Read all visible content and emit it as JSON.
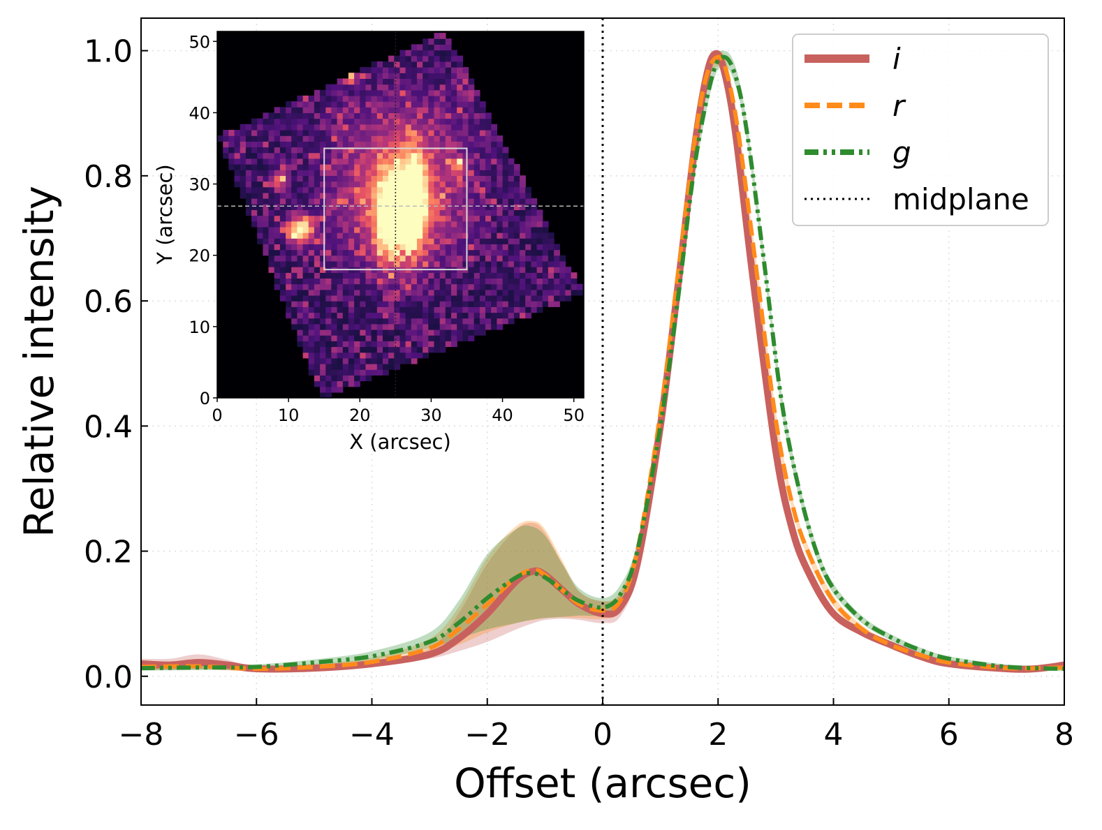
{
  "chart_data": [
    {
      "type": "line",
      "xlabel": "Offset (arcsec)",
      "ylabel": "Relative intensity",
      "xlim": [
        -8,
        8
      ],
      "ylim": [
        -0.046,
        1.052
      ],
      "xticks": [
        "−8",
        "−6",
        "−4",
        "−2",
        "0",
        "2",
        "4",
        "6",
        "8"
      ],
      "xtick_values": [
        -8,
        -6,
        -4,
        -2,
        0,
        2,
        4,
        6,
        8
      ],
      "yticks": [
        "0.0",
        "0.2",
        "0.4",
        "0.6",
        "0.8",
        "1.0"
      ],
      "ytick_values": [
        0,
        0.2,
        0.4,
        0.6,
        0.8,
        1.0
      ],
      "grid": true,
      "legend_placement": "top-right",
      "midplane": {
        "name": "midplane",
        "x": 0,
        "color": "#000000",
        "style": "dotted"
      },
      "series": [
        {
          "name": "i",
          "color": "#c8615e",
          "style": "solid",
          "x": [
            -8,
            -7.5,
            -7,
            -6.5,
            -6,
            -5,
            -4,
            -3,
            -2.5,
            -2,
            -1.5,
            -1.2,
            -1,
            -0.7,
            -0.4,
            0,
            0.3,
            0.6,
            1,
            1.3,
            1.6,
            1.8,
            1.95,
            2.1,
            2.3,
            2.6,
            3,
            3.3,
            3.6,
            4,
            4.5,
            5,
            5.5,
            6,
            7,
            7.5,
            8
          ],
          "y": [
            0.02,
            0.018,
            0.022,
            0.018,
            0.012,
            0.013,
            0.02,
            0.035,
            0.06,
            0.1,
            0.152,
            0.168,
            0.162,
            0.138,
            0.115,
            0.1,
            0.11,
            0.18,
            0.4,
            0.62,
            0.85,
            0.96,
            0.995,
            0.97,
            0.87,
            0.64,
            0.36,
            0.23,
            0.16,
            0.1,
            0.07,
            0.05,
            0.032,
            0.02,
            0.012,
            0.012,
            0.018
          ],
          "band_lower": [
            0.012,
            0.01,
            0.012,
            0.01,
            0.008,
            0.009,
            0.015,
            0.028,
            0.04,
            0.055,
            0.075,
            0.085,
            0.09,
            0.092,
            0.09,
            0.085,
            0.095,
            0.165,
            0.38,
            0.6,
            0.83,
            0.945,
            0.98,
            0.955,
            0.855,
            0.625,
            0.345,
            0.22,
            0.15,
            0.092,
            0.064,
            0.045,
            0.028,
            0.016,
            0.009,
            0.009,
            0.013
          ],
          "band_upper": [
            0.028,
            0.028,
            0.035,
            0.026,
            0.016,
            0.017,
            0.025,
            0.045,
            0.1,
            0.18,
            0.235,
            0.245,
            0.23,
            0.18,
            0.135,
            0.12,
            0.13,
            0.2,
            0.42,
            0.64,
            0.87,
            0.975,
            1.0,
            0.985,
            0.885,
            0.655,
            0.375,
            0.24,
            0.17,
            0.108,
            0.076,
            0.055,
            0.036,
            0.024,
            0.016,
            0.015,
            0.022
          ]
        },
        {
          "name": "r",
          "color": "#ff8c1a",
          "style": "dashed",
          "x": [
            -8,
            -7,
            -6,
            -5,
            -4,
            -3,
            -2.5,
            -2,
            -1.5,
            -1.2,
            -1,
            -0.7,
            -0.4,
            0,
            0.3,
            0.6,
            1,
            1.3,
            1.6,
            1.8,
            2.0,
            2.15,
            2.35,
            2.65,
            3,
            3.3,
            3.6,
            4,
            4.5,
            5,
            5.5,
            6,
            7,
            8
          ],
          "y": [
            0.015,
            0.016,
            0.012,
            0.015,
            0.023,
            0.045,
            0.075,
            0.115,
            0.158,
            0.17,
            0.162,
            0.138,
            0.115,
            0.105,
            0.12,
            0.2,
            0.42,
            0.64,
            0.86,
            0.96,
            0.99,
            0.965,
            0.87,
            0.66,
            0.41,
            0.27,
            0.19,
            0.12,
            0.075,
            0.05,
            0.034,
            0.022,
            0.013,
            0.014
          ],
          "band_lower": [
            0.01,
            0.011,
            0.008,
            0.01,
            0.017,
            0.035,
            0.05,
            0.07,
            0.085,
            0.09,
            0.093,
            0.094,
            0.093,
            0.092,
            0.105,
            0.185,
            0.4,
            0.62,
            0.84,
            0.945,
            0.975,
            0.95,
            0.855,
            0.645,
            0.395,
            0.26,
            0.18,
            0.112,
            0.069,
            0.045,
            0.03,
            0.018,
            0.009,
            0.01
          ],
          "band_upper": [
            0.02,
            0.021,
            0.016,
            0.02,
            0.03,
            0.06,
            0.11,
            0.19,
            0.24,
            0.248,
            0.235,
            0.185,
            0.135,
            0.12,
            0.135,
            0.215,
            0.44,
            0.66,
            0.88,
            0.975,
            1.0,
            0.98,
            0.885,
            0.675,
            0.425,
            0.28,
            0.2,
            0.128,
            0.081,
            0.055,
            0.038,
            0.026,
            0.017,
            0.018
          ]
        },
        {
          "name": "g",
          "color": "#2e8b2e",
          "style": "dashdotdot",
          "x": [
            -8,
            -7,
            -6,
            -5,
            -4,
            -3,
            -2.5,
            -2,
            -1.5,
            -1.25,
            -1,
            -0.7,
            -0.4,
            0,
            0.3,
            0.6,
            1,
            1.3,
            1.6,
            1.9,
            2.1,
            2.3,
            2.5,
            2.8,
            3.1,
            3.4,
            3.7,
            4,
            4.5,
            5,
            5.5,
            6,
            7,
            8
          ],
          "y": [
            0.013,
            0.014,
            0.015,
            0.022,
            0.032,
            0.055,
            0.085,
            0.125,
            0.158,
            0.165,
            0.158,
            0.138,
            0.12,
            0.11,
            0.13,
            0.2,
            0.4,
            0.6,
            0.82,
            0.96,
            0.99,
            0.96,
            0.87,
            0.66,
            0.44,
            0.3,
            0.2,
            0.14,
            0.09,
            0.062,
            0.042,
            0.028,
            0.015,
            0.012
          ],
          "band_lower": [
            0.009,
            0.01,
            0.011,
            0.017,
            0.026,
            0.045,
            0.06,
            0.075,
            0.085,
            0.09,
            0.093,
            0.095,
            0.097,
            0.098,
            0.115,
            0.185,
            0.38,
            0.58,
            0.8,
            0.945,
            0.975,
            0.945,
            0.855,
            0.645,
            0.425,
            0.288,
            0.19,
            0.132,
            0.084,
            0.057,
            0.038,
            0.024,
            0.011,
            0.008
          ],
          "band_upper": [
            0.017,
            0.018,
            0.019,
            0.027,
            0.04,
            0.07,
            0.12,
            0.195,
            0.235,
            0.24,
            0.225,
            0.18,
            0.14,
            0.125,
            0.145,
            0.215,
            0.42,
            0.62,
            0.84,
            0.975,
            1.0,
            0.975,
            0.885,
            0.675,
            0.455,
            0.312,
            0.21,
            0.148,
            0.096,
            0.067,
            0.046,
            0.032,
            0.019,
            0.016
          ]
        }
      ]
    },
    {
      "type": "heatmap",
      "xlabel": "X (arcsec)",
      "ylabel": "Y (arcsec)",
      "xlim": [
        0,
        51.4
      ],
      "ylim": [
        0,
        51.4
      ],
      "xticks": [
        "0",
        "10",
        "20",
        "30",
        "40",
        "50"
      ],
      "xtick_values": [
        0,
        10,
        20,
        30,
        40,
        50
      ],
      "yticks": [
        "0",
        "10",
        "20",
        "30",
        "40",
        "50"
      ],
      "ytick_values": [
        0,
        10,
        20,
        30,
        40,
        50
      ],
      "colormap": "magma",
      "footprint": [
        [
          0,
          36.7
        ],
        [
          32,
          51.4
        ],
        [
          51.4,
          14.6
        ],
        [
          14.6,
          0
        ]
      ],
      "box": {
        "x": [
          15,
          35
        ],
        "y": [
          18,
          35
        ],
        "color": "#d9d9d9"
      },
      "horizontal_cut_y": 26.9,
      "vertical_cut_x": 25,
      "sources": [
        {
          "x": 27,
          "y": 27,
          "sx": 1.4,
          "sy": 4.5,
          "amp": 1.0
        },
        {
          "x": 23.5,
          "y": 25,
          "sx": 1.3,
          "sy": 4.5,
          "amp": 0.7
        },
        {
          "x": 25,
          "y": 27,
          "sx": 6,
          "sy": 6,
          "amp": 0.45
        },
        {
          "x": 11.3,
          "y": 23.2,
          "sx": 1.3,
          "sy": 1.3,
          "amp": 0.85
        },
        {
          "x": 8.3,
          "y": 30.3,
          "sx": 0.9,
          "sy": 0.9,
          "amp": 0.5
        },
        {
          "x": 40.3,
          "y": 37.3,
          "sx": 1,
          "sy": 1,
          "amp": 0.55
        },
        {
          "x": 33.5,
          "y": 32.2,
          "sx": 0.8,
          "sy": 0.8,
          "amp": 0.4
        },
        {
          "x": 18,
          "y": 44.5,
          "sx": 1,
          "sy": 0.6,
          "amp": 0.6
        },
        {
          "x": 26,
          "y": 37,
          "sx": 7,
          "sy": 5,
          "amp": 0.15
        }
      ]
    }
  ]
}
